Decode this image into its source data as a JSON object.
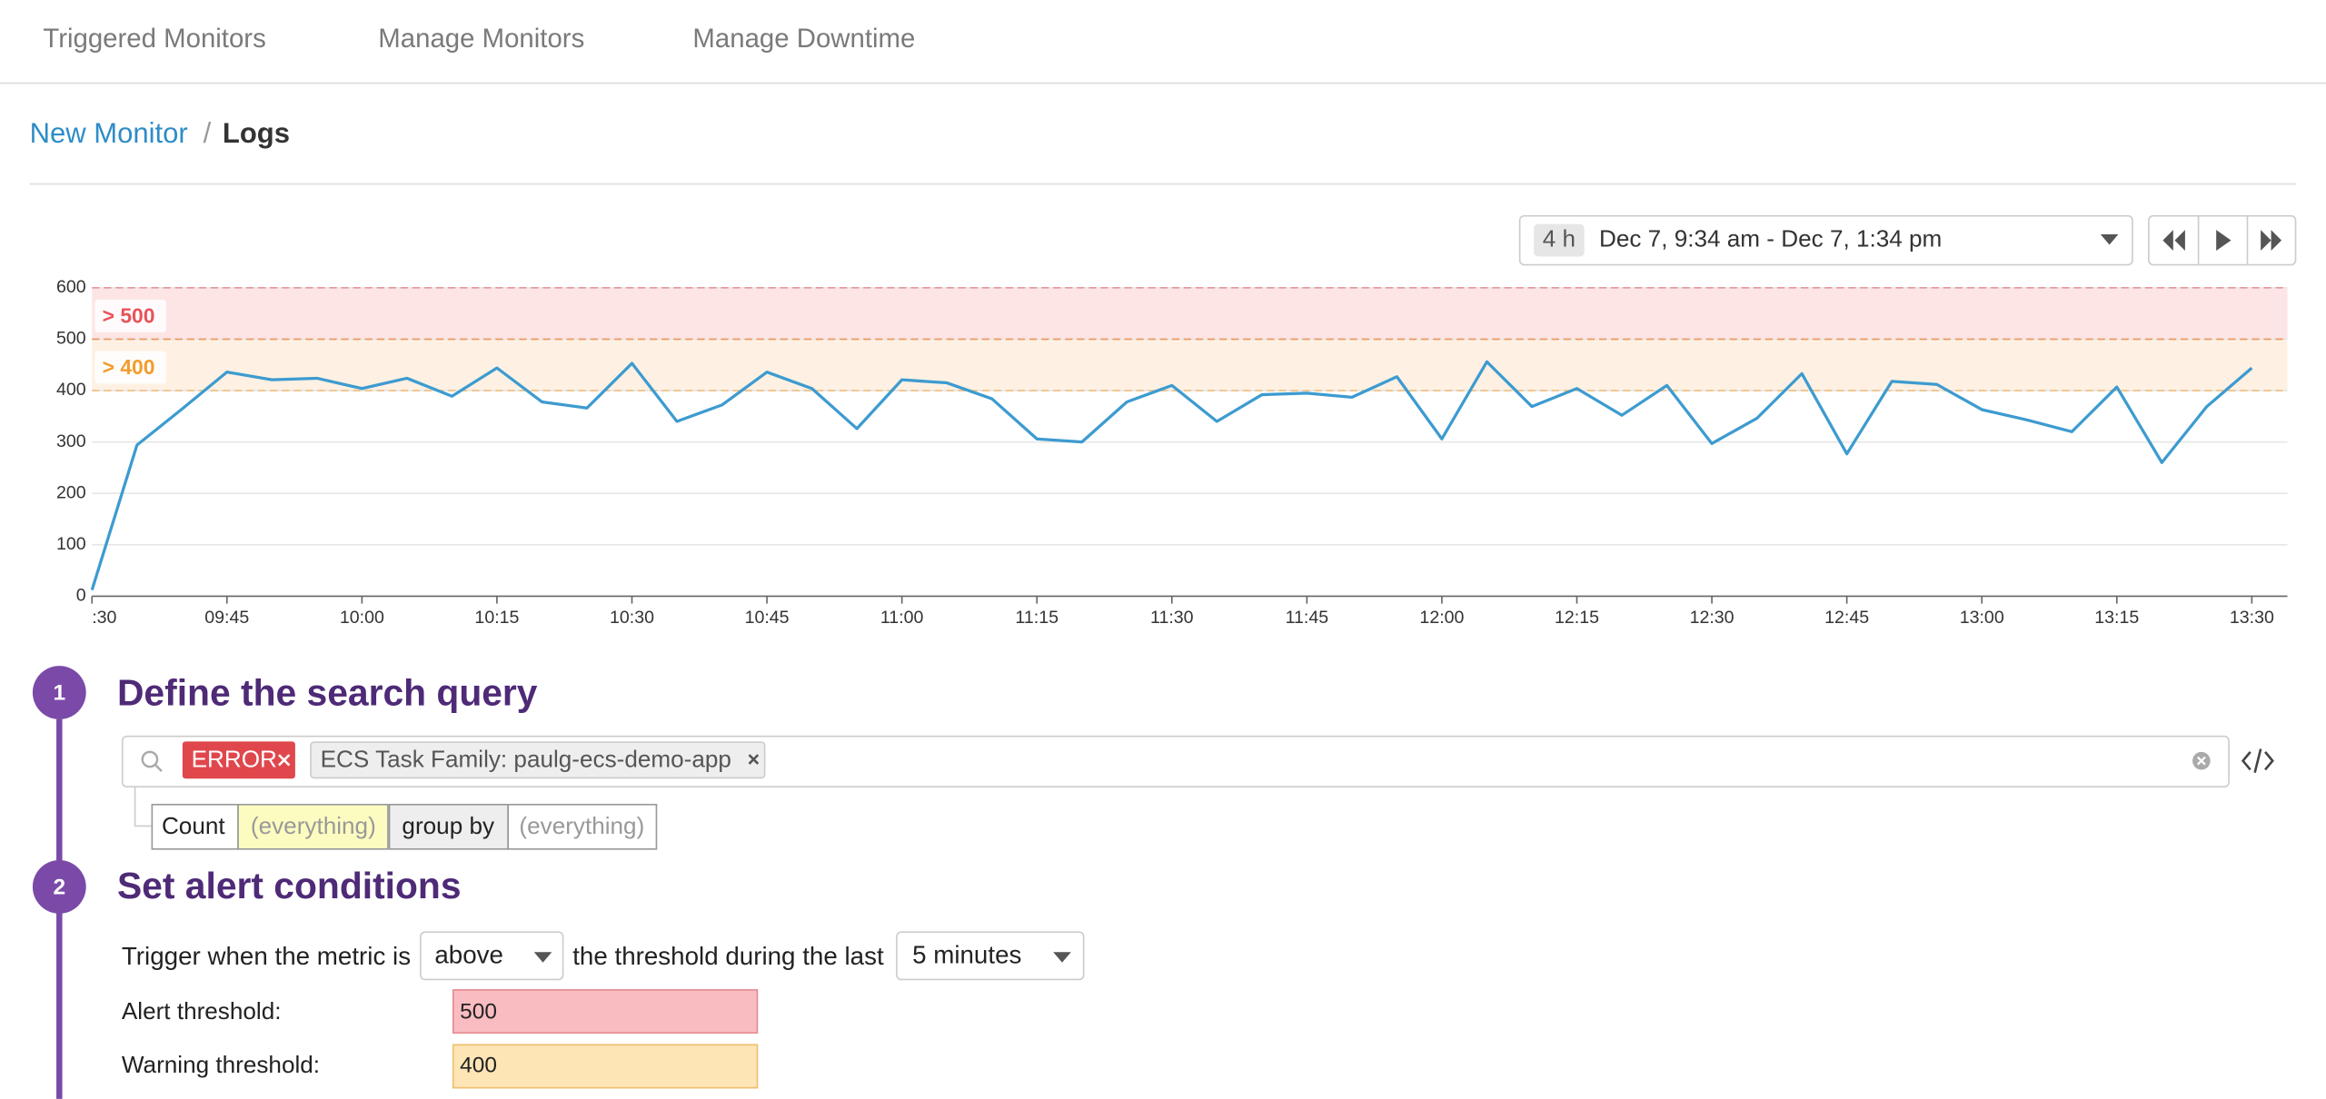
{
  "nav": {
    "tabs": [
      "Triggered Monitors",
      "Manage Monitors",
      "Manage Downtime"
    ]
  },
  "breadcrumb": {
    "parent": "New Monitor",
    "separator": "/",
    "current": "Logs"
  },
  "time_picker": {
    "span": "4 h",
    "range": "Dec 7, 9:34 am - Dec 7, 1:34 pm"
  },
  "chart_data": {
    "type": "line",
    "categories": [
      ":30",
      null,
      null,
      "09:45",
      null,
      null,
      "10:00",
      null,
      null,
      "10:15",
      null,
      null,
      "10:30",
      null,
      null,
      "10:45",
      null,
      null,
      "11:00",
      null,
      null,
      "11:15",
      null,
      null,
      "11:30",
      null,
      null,
      "11:45",
      null,
      null,
      "12:00",
      null,
      null,
      "12:15",
      null,
      null,
      "12:30",
      null,
      null,
      "12:45",
      null,
      null,
      "13:00",
      null,
      null,
      "13:15",
      null,
      null,
      "13:30"
    ],
    "series": [
      {
        "color": "#3d9bd0",
        "values": [
          12,
          294,
          364,
          436,
          421,
          424,
          404,
          424,
          389,
          444,
          378,
          366,
          453,
          340,
          372,
          436,
          404,
          326,
          421,
          415,
          384,
          306,
          300,
          378,
          410,
          340,
          392,
          395,
          387,
          427,
          306,
          456,
          369,
          404,
          352,
          410,
          297,
          346,
          433,
          277,
          418,
          412,
          363,
          343,
          320,
          407,
          260,
          369,
          444
        ]
      }
    ],
    "ylim": [
      0,
      600
    ],
    "yticks": [
      0,
      100,
      200,
      300,
      400,
      500,
      600
    ],
    "grid": true,
    "thresholds": [
      {
        "label": "> 500",
        "from": 500,
        "to": 600,
        "color": "#e8535a",
        "fill": "#fde5e6"
      },
      {
        "label": "> 400",
        "from": 400,
        "to": 500,
        "color": "#f39c2c",
        "fill": "#fef1e3"
      }
    ]
  },
  "steps": [
    {
      "number": "1",
      "title": "Define the search query"
    },
    {
      "number": "2",
      "title": "Set alert conditions"
    }
  ],
  "search": {
    "tags": [
      "ERROR",
      "ECS Task Family: paulg-ecs-demo-app"
    ],
    "aggregation": "Count",
    "measure": "(everything)",
    "group_label": "group by",
    "group": "(everything)"
  },
  "conditions": {
    "prefix": "Trigger when the metric is",
    "comparator": "above",
    "middle": "the threshold during the last",
    "window": "5 minutes",
    "alert_label": "Alert threshold:",
    "alert_value": 500,
    "warning_label": "Warning threshold:",
    "warning_value": 400
  }
}
